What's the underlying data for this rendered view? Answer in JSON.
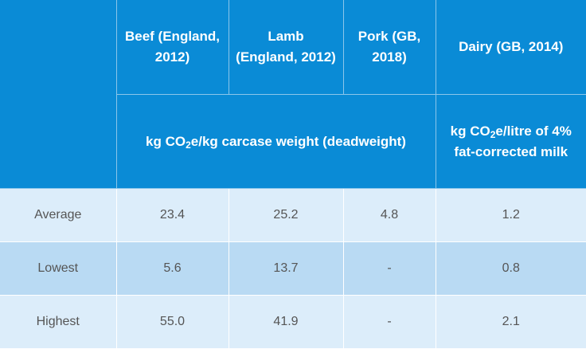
{
  "table": {
    "columns": [
      "Beef (England, 2012)",
      "Lamb (England, 2012)",
      "Pork (GB, 2018)",
      "Dairy (GB, 2014)"
    ],
    "unit_meat": {
      "before_sub": "kg CO",
      "sub": "2",
      "after_sub": "e/kg carcase weight (deadweight)"
    },
    "unit_dairy": {
      "before_sub": "kg CO",
      "sub": "2",
      "after_sub": "e/litre of 4% fat-corrected milk"
    },
    "rows": [
      {
        "label": "Average",
        "values": [
          "23.4",
          "25.2",
          "4.8",
          "1.2"
        ]
      },
      {
        "label": "Lowest",
        "values": [
          "5.6",
          "13.7",
          "-",
          "0.8"
        ]
      },
      {
        "label": "Highest",
        "values": [
          "55.0",
          "41.9",
          "-",
          "2.1"
        ]
      }
    ]
  },
  "colors": {
    "header_bg": "#0a8bd6",
    "row_light": "#dcedfa",
    "row_mid": "#b9daf3"
  }
}
